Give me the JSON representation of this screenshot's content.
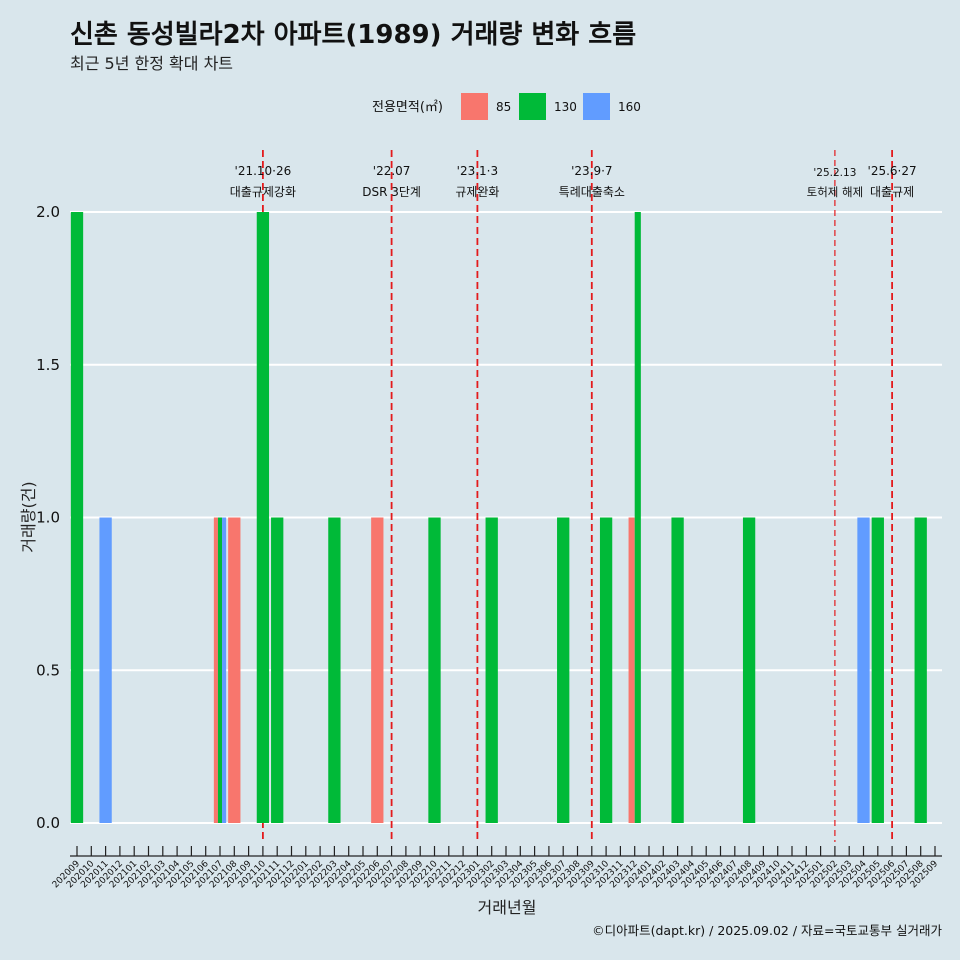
{
  "chart_data": {
    "type": "bar",
    "title": "신촌 동성빌라2차 아파트(1989) 거래량 변화 흐름",
    "subtitle": "최근 5년 한정 확대 차트",
    "xlabel": "거래년월",
    "ylabel": "거래량(건)",
    "ylim": [
      0,
      2.0
    ],
    "yticks": [
      "0.0",
      "0.5",
      "1.0",
      "1.5",
      "2.0"
    ],
    "grid": "horizontal",
    "legend": {
      "title": "전용면적(㎡)",
      "position": "top",
      "entries": [
        {
          "label": "85",
          "color": "#f8766d"
        },
        {
          "label": "130",
          "color": "#00ba38"
        },
        {
          "label": "160",
          "color": "#619cff"
        }
      ]
    },
    "categories": [
      "202009",
      "202010",
      "202011",
      "202012",
      "202101",
      "202102",
      "202103",
      "202104",
      "202105",
      "202106",
      "202107",
      "202108",
      "202109",
      "202110",
      "202111",
      "202112",
      "202201",
      "202202",
      "202203",
      "202204",
      "202205",
      "202206",
      "202207",
      "202208",
      "202209",
      "202210",
      "202211",
      "202212",
      "202301",
      "202302",
      "202303",
      "202304",
      "202305",
      "202306",
      "202307",
      "202308",
      "202309",
      "202310",
      "202311",
      "202312",
      "202401",
      "202402",
      "202403",
      "202404",
      "202405",
      "202406",
      "202407",
      "202408",
      "202409",
      "202410",
      "202411",
      "202412",
      "202501",
      "202502",
      "202503",
      "202504",
      "202505",
      "202506",
      "202507",
      "202508",
      "202509"
    ],
    "bars": [
      {
        "month": "202009",
        "area": "130",
        "value": 2
      },
      {
        "month": "202011",
        "area": "160",
        "value": 1
      },
      {
        "month": "202107",
        "area": "85",
        "value": 1
      },
      {
        "month": "202107",
        "area": "130",
        "value": 1
      },
      {
        "month": "202107",
        "area": "160",
        "value": 1
      },
      {
        "month": "202108",
        "area": "85",
        "value": 1
      },
      {
        "month": "202110",
        "area": "130",
        "value": 2
      },
      {
        "month": "202111",
        "area": "130",
        "value": 1
      },
      {
        "month": "202203",
        "area": "130",
        "value": 1
      },
      {
        "month": "202206",
        "area": "85",
        "value": 1
      },
      {
        "month": "202210",
        "area": "130",
        "value": 1
      },
      {
        "month": "202302",
        "area": "130",
        "value": 1
      },
      {
        "month": "202307",
        "area": "130",
        "value": 1
      },
      {
        "month": "202310",
        "area": "130",
        "value": 1
      },
      {
        "month": "202312",
        "area": "85",
        "value": 1
      },
      {
        "month": "202312",
        "area": "130",
        "value": 2
      },
      {
        "month": "202403",
        "area": "130",
        "value": 1
      },
      {
        "month": "202408",
        "area": "130",
        "value": 1
      },
      {
        "month": "202504",
        "area": "160",
        "value": 1
      },
      {
        "month": "202505",
        "area": "130",
        "value": 1
      },
      {
        "month": "202508",
        "area": "130",
        "value": 1
      }
    ],
    "annotations": [
      {
        "month": 13.0,
        "date": "'21.10·26",
        "label": "대출규제강화",
        "small": false
      },
      {
        "month": 22.0,
        "date": "'22.07",
        "label": "DSR 3단계",
        "small": false
      },
      {
        "month": 28.0,
        "date": "'23.1·3",
        "label": "규제완화",
        "small": false
      },
      {
        "month": 36.0,
        "date": "'23.9·7",
        "label": "특례대출축소",
        "small": false
      },
      {
        "month": 53.0,
        "date": "'25.2.13",
        "label": "토허제 해제",
        "small": true
      },
      {
        "month": 57.0,
        "date": "'25.6·27",
        "label": "대출규제",
        "small": false
      }
    ],
    "caption": "©디아파트(dapt.kr) / 2025.09.02 / 자료=국토교통부 실거래가"
  }
}
